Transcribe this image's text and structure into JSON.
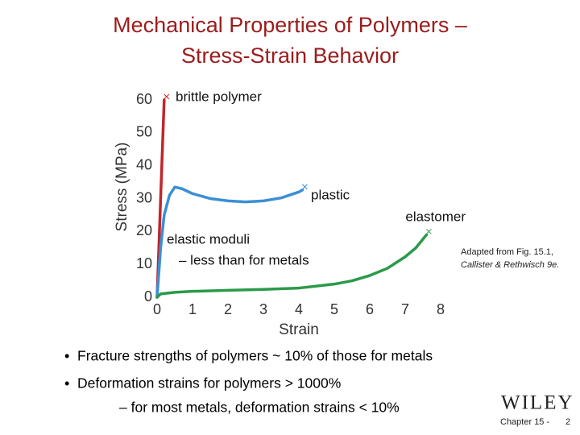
{
  "title": [
    "Mechanical Properties of Polymers –",
    "Stress-Strain Behavior"
  ],
  "chart_data": {
    "type": "line",
    "x_label": "Strain",
    "y_label": "Stress (MPa)",
    "xlim": [
      0,
      8
    ],
    "xticks": [
      0,
      1,
      2,
      3,
      4,
      5,
      6,
      7,
      8
    ],
    "ylim": [
      0,
      60
    ],
    "yticks": [
      0,
      10,
      20,
      30,
      40,
      50,
      60
    ],
    "series": [
      {
        "name": "brittle polymer",
        "color": "#c0262b",
        "x": [
          0,
          0.05,
          0.1,
          0.15,
          0.2
        ],
        "values": [
          0,
          15,
          30,
          45,
          60
        ]
      },
      {
        "name": "plastic",
        "color": "#3b8fd4",
        "x": [
          0,
          0.1,
          0.2,
          0.35,
          0.5,
          0.7,
          1.0,
          1.5,
          2,
          2.5,
          3,
          3.5,
          4,
          4.1
        ],
        "values": [
          0,
          15,
          25,
          31,
          33.5,
          33,
          31.5,
          30,
          29.3,
          29,
          29.3,
          30.2,
          32,
          32.6
        ]
      },
      {
        "name": "elastomer",
        "color": "#2a9a4a",
        "x": [
          0,
          0.1,
          0.5,
          1,
          2,
          3,
          4,
          5,
          5.5,
          6,
          6.5,
          7,
          7.3,
          7.6
        ],
        "values": [
          0,
          1,
          1.5,
          1.8,
          2.1,
          2.4,
          2.8,
          4,
          5,
          6.6,
          8.8,
          12.3,
          15,
          19
        ]
      }
    ],
    "annotations": [
      "elastic moduli",
      "– less than for metals"
    ]
  },
  "citation": [
    "Adapted from Fig. 15.1,",
    "Callister & Rethwisch 9e."
  ],
  "bullets": [
    "Fracture strengths of polymers ~ 10% of those for metals",
    "Deformation strains for polymers > 1000%"
  ],
  "sub_bullet": "– for most metals, deformation strains < 10%",
  "logo": "WILEY",
  "footer": [
    "Chapter 15 -",
    "2"
  ]
}
